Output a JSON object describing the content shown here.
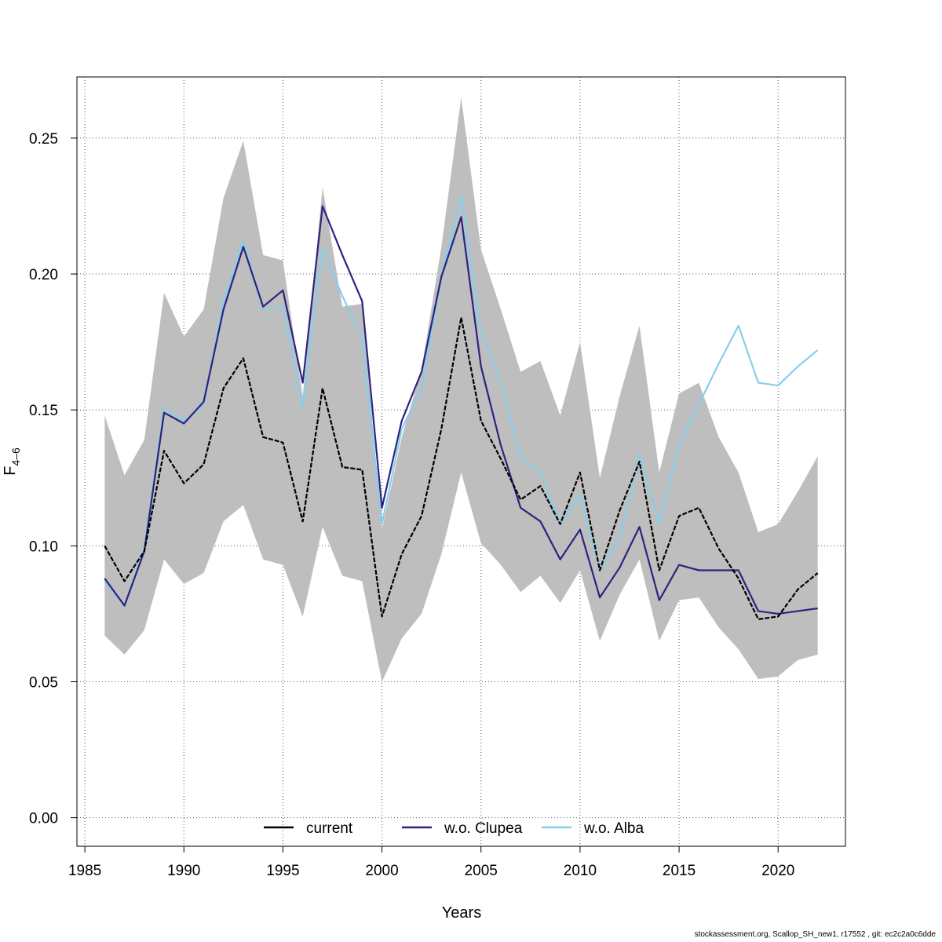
{
  "chart_data": {
    "type": "line",
    "xlabel": "Years",
    "ylabel": "F",
    "ylabel_subscript": "4–6",
    "xlim": [
      1984.6,
      2023.4
    ],
    "ylim": [
      -0.0105,
      0.2725
    ],
    "x_ticks": [
      1985,
      1990,
      1995,
      2000,
      2005,
      2010,
      2015,
      2020
    ],
    "y_ticks": [
      0.0,
      0.05,
      0.1,
      0.15,
      0.2,
      0.25
    ],
    "y_tick_labels": [
      "0.00",
      "0.05",
      "0.10",
      "0.15",
      "0.20",
      "0.25"
    ],
    "grid": true,
    "legend_position": "bottom",
    "years": [
      1986,
      1987,
      1988,
      1989,
      1990,
      1991,
      1992,
      1993,
      1994,
      1995,
      1996,
      1997,
      1998,
      1999,
      2000,
      2001,
      2002,
      2003,
      2004,
      2005,
      2006,
      2007,
      2008,
      2009,
      2010,
      2011,
      2012,
      2013,
      2014,
      2015,
      2016,
      2017,
      2018,
      2019,
      2020,
      2021,
      2022
    ],
    "band": {
      "color": "#bebebe",
      "upper": [
        0.148,
        0.126,
        0.139,
        0.193,
        0.177,
        0.187,
        0.228,
        0.249,
        0.207,
        0.205,
        0.155,
        0.232,
        0.188,
        0.189,
        0.106,
        0.14,
        0.165,
        0.21,
        0.265,
        0.209,
        0.187,
        0.164,
        0.168,
        0.148,
        0.175,
        0.125,
        0.155,
        0.181,
        0.127,
        0.156,
        0.16,
        0.14,
        0.127,
        0.105,
        0.108,
        0.12,
        0.133
      ],
      "lower": [
        0.067,
        0.06,
        0.069,
        0.095,
        0.086,
        0.09,
        0.109,
        0.115,
        0.095,
        0.093,
        0.074,
        0.107,
        0.089,
        0.087,
        0.05,
        0.066,
        0.075,
        0.097,
        0.127,
        0.101,
        0.093,
        0.083,
        0.089,
        0.079,
        0.091,
        0.065,
        0.082,
        0.095,
        0.065,
        0.08,
        0.081,
        0.07,
        0.062,
        0.051,
        0.052,
        0.058,
        0.06
      ]
    },
    "series": [
      {
        "name": "current",
        "color": "#000000",
        "dash": "6,2",
        "values": [
          0.1,
          0.087,
          0.098,
          0.135,
          0.123,
          0.13,
          0.158,
          0.169,
          0.14,
          0.138,
          0.109,
          0.158,
          0.129,
          0.128,
          0.074,
          0.097,
          0.111,
          0.143,
          0.184,
          0.146,
          0.132,
          0.117,
          0.122,
          0.108,
          0.127,
          0.091,
          0.113,
          0.131,
          0.091,
          0.111,
          0.114,
          0.099,
          0.088,
          0.073,
          0.074,
          0.084,
          0.09
        ]
      },
      {
        "name": "w.o. Clupea",
        "color": "#2a2480",
        "dash": "",
        "values": [
          0.088,
          0.078,
          0.098,
          0.149,
          0.145,
          0.153,
          0.187,
          0.21,
          0.188,
          0.194,
          0.16,
          0.225,
          0.207,
          0.19,
          0.114,
          0.146,
          0.164,
          0.199,
          0.221,
          0.166,
          0.137,
          0.114,
          0.109,
          0.095,
          0.106,
          0.081,
          0.092,
          0.107,
          0.08,
          0.093,
          0.091,
          0.091,
          0.091,
          0.076,
          0.075,
          0.076,
          0.077
        ]
      },
      {
        "name": "w.o. Alba",
        "color": "#87ceeb",
        "dash": "",
        "values": [
          0.087,
          0.078,
          0.099,
          0.151,
          0.146,
          0.152,
          0.19,
          0.212,
          0.187,
          0.188,
          0.151,
          0.209,
          0.192,
          0.176,
          0.108,
          0.143,
          0.158,
          0.199,
          0.229,
          0.179,
          0.16,
          0.132,
          0.127,
          0.108,
          0.119,
          0.091,
          0.103,
          0.134,
          0.108,
          0.137,
          0.152,
          0.167,
          0.181,
          0.16,
          0.159,
          0.166,
          0.172
        ]
      }
    ],
    "legend": [
      {
        "label": "current",
        "color": "#000000"
      },
      {
        "label": "w.o. Clupea",
        "color": "#2a2480"
      },
      {
        "label": "w.o. Alba",
        "color": "#87ceeb"
      }
    ]
  },
  "footer_text": "stockassessment.org, Scallop_SH_new1, r17552 , git: ec2c2a0c6dde"
}
